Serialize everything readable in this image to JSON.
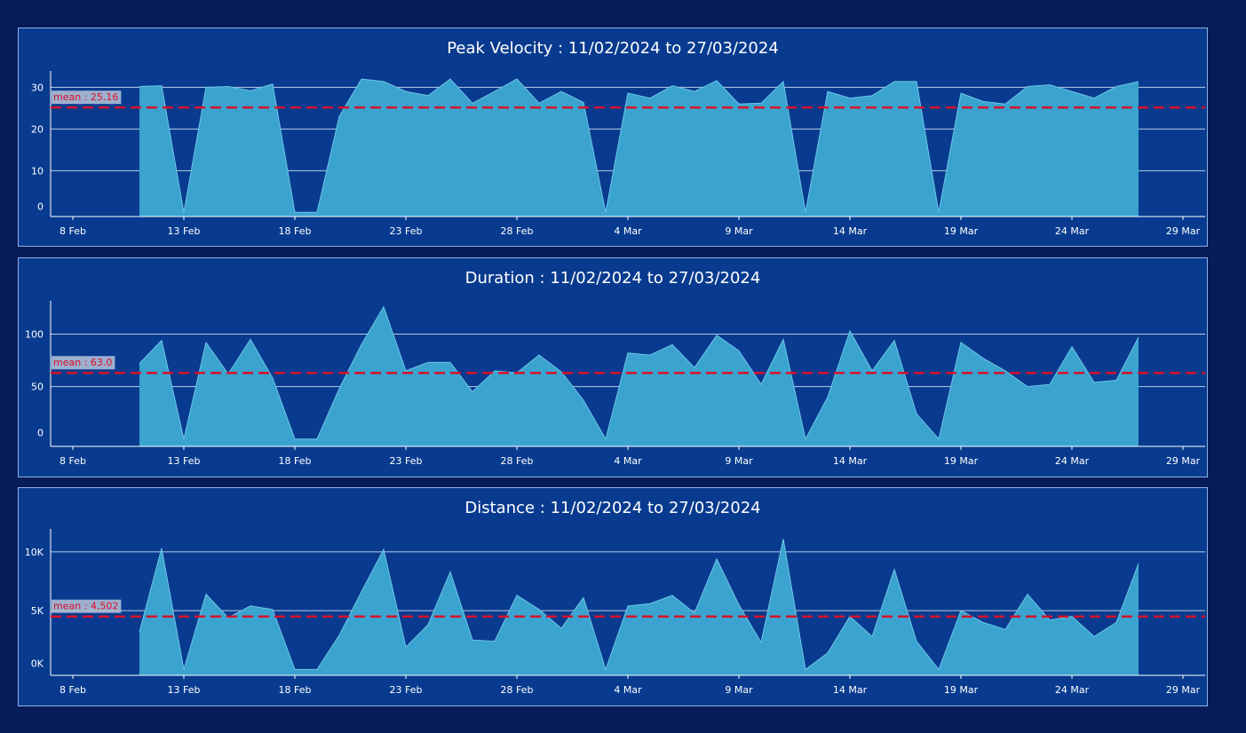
{
  "chart_data": [
    {
      "type": "area",
      "title": "Peak Velocity : 11/02/2024 to 27/03/2024",
      "x_start": "11 Feb 2024",
      "x": [
        "11 Feb",
        "12 Feb",
        "13 Feb",
        "14 Feb",
        "15 Feb",
        "16 Feb",
        "17 Feb",
        "18 Feb",
        "19 Feb",
        "20 Feb",
        "21 Feb",
        "22 Feb",
        "23 Feb",
        "24 Feb",
        "25 Feb",
        "26 Feb",
        "27 Feb",
        "28 Feb",
        "29 Feb",
        "1 Mar",
        "2 Mar",
        "3 Mar",
        "4 Mar",
        "5 Mar",
        "6 Mar",
        "7 Mar",
        "8 Mar",
        "9 Mar",
        "10 Mar",
        "11 Mar",
        "12 Mar",
        "13 Mar",
        "14 Mar",
        "15 Mar",
        "16 Mar",
        "17 Mar",
        "18 Mar",
        "19 Mar",
        "20 Mar",
        "21 Mar",
        "22 Mar",
        "23 Mar",
        "24 Mar",
        "25 Mar",
        "26 Mar",
        "27 Mar"
      ],
      "values": [
        30.2,
        30.4,
        0,
        30,
        30.2,
        29.2,
        30.8,
        0,
        0,
        23,
        32,
        31.4,
        29,
        28,
        32,
        26.2,
        29,
        32,
        26.2,
        29,
        26.4,
        0,
        28.6,
        27.4,
        30.4,
        29,
        31.6,
        26,
        26.2,
        31.4,
        0,
        29,
        27.4,
        28,
        31.4,
        31.4,
        0,
        28.6,
        26.6,
        26,
        30.2,
        30.6,
        29,
        27.4,
        30.2,
        31.4
      ],
      "ylim": [
        -1,
        33.5
      ],
      "yticks": [
        0,
        10,
        20,
        30
      ],
      "ytick_labels": [
        "0",
        "10",
        "20",
        "30"
      ],
      "xlim": [
        "7 Feb 2024",
        "30 Mar 2024"
      ],
      "xtick_labels": [
        "8 Feb",
        "13 Feb",
        "18 Feb",
        "23 Feb",
        "28 Feb",
        "4 Mar",
        "9 Mar",
        "14 Mar",
        "19 Mar",
        "24 Mar",
        "29 Mar"
      ],
      "mean": 25.16,
      "mean_label": "mean : 25.16",
      "grid": true
    },
    {
      "type": "area",
      "title": "Duration : 11/02/2024 to 27/03/2024",
      "x_start": "11 Feb 2024",
      "x": [
        "11 Feb",
        "12 Feb",
        "13 Feb",
        "14 Feb",
        "15 Feb",
        "16 Feb",
        "17 Feb",
        "18 Feb",
        "19 Feb",
        "20 Feb",
        "21 Feb",
        "22 Feb",
        "23 Feb",
        "24 Feb",
        "25 Feb",
        "26 Feb",
        "27 Feb",
        "28 Feb",
        "29 Feb",
        "1 Mar",
        "2 Mar",
        "3 Mar",
        "4 Mar",
        "5 Mar",
        "6 Mar",
        "7 Mar",
        "8 Mar",
        "9 Mar",
        "10 Mar",
        "11 Mar",
        "12 Mar",
        "13 Mar",
        "14 Mar",
        "15 Mar",
        "16 Mar",
        "17 Mar",
        "18 Mar",
        "19 Mar",
        "20 Mar",
        "21 Mar",
        "22 Mar",
        "23 Mar",
        "24 Mar",
        "25 Mar",
        "26 Mar",
        "27 Mar"
      ],
      "values": [
        72,
        94,
        0,
        92,
        62,
        95,
        58,
        0,
        0,
        48,
        90,
        126,
        65,
        73,
        73,
        45,
        65,
        63,
        80,
        64,
        37,
        0,
        82,
        80,
        90,
        68,
        99,
        84,
        52,
        95,
        0,
        40,
        103,
        65,
        94,
        24,
        0,
        92,
        77,
        65,
        50,
        52,
        88,
        54,
        56,
        97
      ],
      "ylim": [
        -7,
        130
      ],
      "yticks": [
        0,
        50,
        100
      ],
      "ytick_labels": [
        "0",
        "50",
        "100"
      ],
      "xlim": [
        "7 Feb 2024",
        "30 Mar 2024"
      ],
      "xtick_labels": [
        "8 Feb",
        "13 Feb",
        "18 Feb",
        "23 Feb",
        "28 Feb",
        "4 Mar",
        "9 Mar",
        "14 Mar",
        "19 Mar",
        "24 Mar",
        "29 Mar"
      ],
      "mean": 63.0,
      "mean_label": "mean : 63.0",
      "grid": true
    },
    {
      "type": "area",
      "title": "Distance : 11/02/2024 to 27/03/2024",
      "x_start": "11 Feb 2024",
      "x": [
        "11 Feb",
        "12 Feb",
        "13 Feb",
        "14 Feb",
        "15 Feb",
        "16 Feb",
        "17 Feb",
        "18 Feb",
        "19 Feb",
        "20 Feb",
        "21 Feb",
        "22 Feb",
        "23 Feb",
        "24 Feb",
        "25 Feb",
        "26 Feb",
        "27 Feb",
        "28 Feb",
        "29 Feb",
        "1 Mar",
        "2 Mar",
        "3 Mar",
        "4 Mar",
        "5 Mar",
        "6 Mar",
        "7 Mar",
        "8 Mar",
        "9 Mar",
        "10 Mar",
        "11 Mar",
        "12 Mar",
        "13 Mar",
        "14 Mar",
        "15 Mar",
        "16 Mar",
        "17 Mar",
        "18 Mar",
        "19 Mar",
        "20 Mar",
        "21 Mar",
        "22 Mar",
        "23 Mar",
        "24 Mar",
        "25 Mar",
        "26 Mar",
        "27 Mar"
      ],
      "values": [
        3200,
        10300,
        0,
        6400,
        4400,
        5400,
        5100,
        0,
        0,
        2900,
        6600,
        10200,
        1900,
        3800,
        8300,
        2500,
        2400,
        6300,
        5100,
        3500,
        6100,
        0,
        5400,
        5600,
        6300,
        4800,
        9400,
        5500,
        2300,
        11100,
        0,
        1400,
        4500,
        2800,
        8500,
        2400,
        0,
        5000,
        4000,
        3400,
        6400,
        4200,
        4500,
        2800,
        4000,
        9000
      ],
      "ylim": [
        -500,
        11800
      ],
      "yticks": [
        0,
        5000,
        10000
      ],
      "ytick_labels": [
        "0K",
        "5K",
        "10K"
      ],
      "xlim": [
        "7 Feb 2024",
        "30 Mar 2024"
      ],
      "xtick_labels": [
        "8 Feb",
        "13 Feb",
        "18 Feb",
        "23 Feb",
        "28 Feb",
        "4 Mar",
        "9 Mar",
        "14 Mar",
        "19 Mar",
        "24 Mar",
        "29 Mar"
      ],
      "mean": 4502,
      "mean_label": "mean : 4,502",
      "grid": true
    }
  ],
  "colors": {
    "background": "#061c5a",
    "panel": "#083b8f",
    "area_fill": "#3aa3cf",
    "area_line": "#6fc5e8",
    "gridline": "#b9cde8",
    "mean_line": "#d8112a",
    "mean_label_bg": "#b7c4d9"
  }
}
